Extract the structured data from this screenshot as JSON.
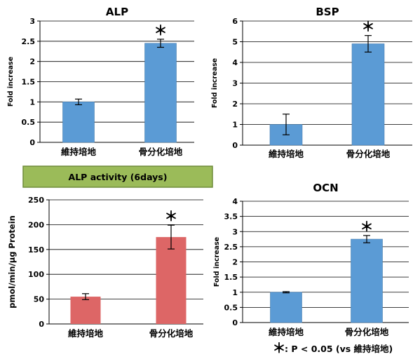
{
  "colors": {
    "blue": "#5b9bd5",
    "red": "#dd6666",
    "banner_fill": "#9bbb59",
    "banner_border": "#6f8c3a"
  },
  "banner": {
    "text": "ALP activity  (6days)"
  },
  "footnote": {
    "star": "＊",
    "text": ": P < 0.05 (vs 維持培地)"
  },
  "chart_data": [
    {
      "id": "alp",
      "type": "bar",
      "title": "ALP",
      "ylabel": "Fold increase",
      "categories": [
        "維持培地",
        "骨分化培地"
      ],
      "values": [
        1.0,
        2.45
      ],
      "errors": [
        0.07,
        0.1
      ],
      "significance": [
        "",
        "＊"
      ],
      "ylim": [
        0,
        3
      ],
      "yticks": [
        0,
        0.5,
        1,
        1.5,
        2,
        2.5,
        3
      ],
      "grid": true,
      "color": "blue"
    },
    {
      "id": "bsp",
      "type": "bar",
      "title": "BSP",
      "ylabel": "Fold increase",
      "categories": [
        "維持培地",
        "骨分化培地"
      ],
      "values": [
        1.0,
        4.9
      ],
      "errors": [
        0.5,
        0.4
      ],
      "significance": [
        "",
        "＊"
      ],
      "ylim": [
        0,
        6
      ],
      "yticks": [
        0,
        1,
        2,
        3,
        4,
        5,
        6
      ],
      "grid": true,
      "color": "blue"
    },
    {
      "id": "alp_activity",
      "type": "bar",
      "title": "",
      "ylabel": "pmol/min/µg Protein",
      "categories": [
        "維持培地",
        "骨分化培地"
      ],
      "values": [
        55,
        175
      ],
      "errors": [
        6,
        24
      ],
      "significance": [
        "",
        "＊"
      ],
      "ylim": [
        0,
        250
      ],
      "yticks": [
        0,
        50,
        100,
        150,
        200,
        250
      ],
      "grid": true,
      "color": "red"
    },
    {
      "id": "ocn",
      "type": "bar",
      "title": "OCN",
      "ylabel": "Fold increase",
      "categories": [
        "維持培地",
        "骨分化培地"
      ],
      "values": [
        1.0,
        2.75
      ],
      "errors": [
        0.02,
        0.12
      ],
      "significance": [
        "",
        "＊"
      ],
      "ylim": [
        0,
        4
      ],
      "yticks": [
        0,
        0.5,
        1,
        1.5,
        2,
        2.5,
        3,
        3.5,
        4
      ],
      "grid": true,
      "color": "red_none"
    }
  ]
}
